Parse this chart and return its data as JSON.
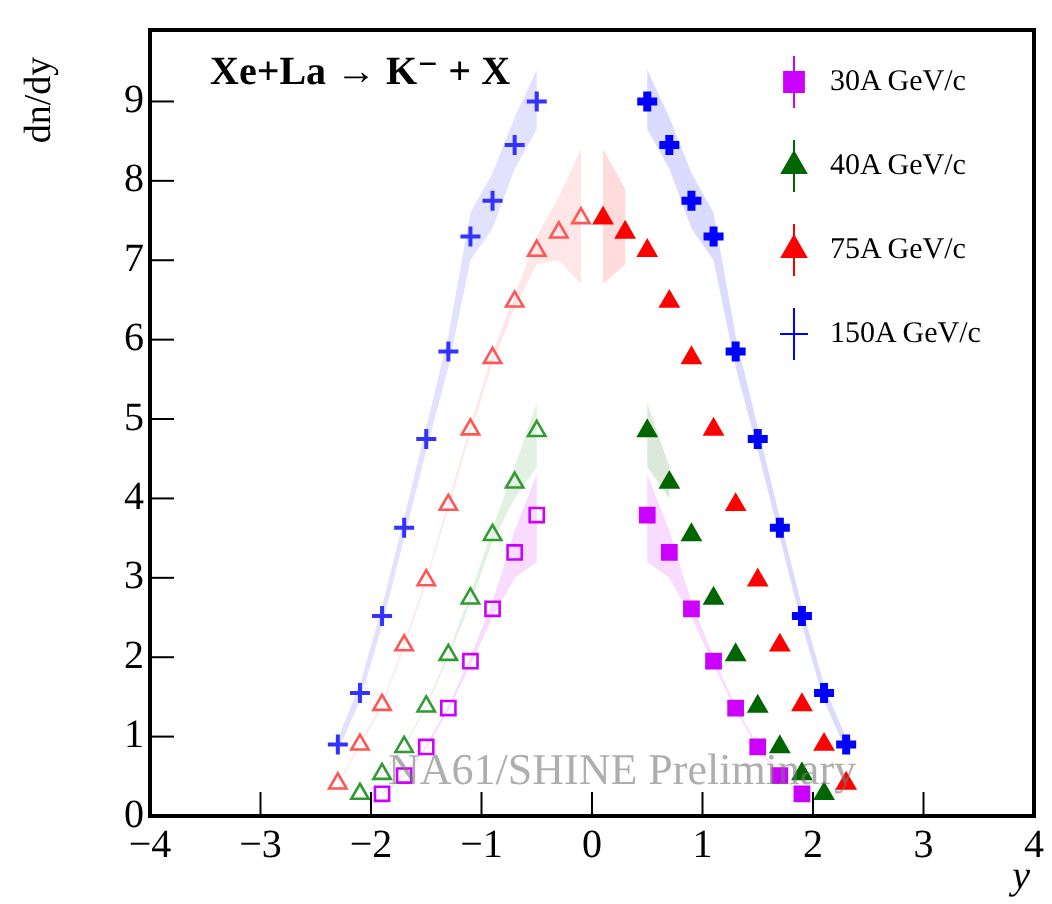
{
  "chart_data": {
    "type": "scatter",
    "title": "Xe+La → K⁻ + X",
    "xlabel": "y",
    "ylabel": "dn/dy",
    "xlim": [
      -4,
      4
    ],
    "xticks": [
      -4,
      -3,
      -2,
      -1,
      0,
      1,
      2,
      3,
      4
    ],
    "ylim": [
      0,
      9.9
    ],
    "yticks": [
      0,
      1,
      2,
      3,
      4,
      5,
      6,
      7,
      8,
      9
    ],
    "grid": false,
    "legend": "top right",
    "annotations": [
      "NA61/SHINE Preliminary"
    ],
    "series": [
      {
        "name": "30A GeV/c",
        "color": "#cc00ff",
        "marker": "square",
        "x": [
          0.5,
          0.7,
          0.9,
          1.1,
          1.3,
          1.5,
          1.7,
          1.9
        ],
        "values": [
          3.79,
          3.32,
          2.61,
          1.95,
          1.36,
          0.87,
          0.51,
          0.28
        ],
        "lower": [
          3.2,
          3.0,
          2.5,
          1.9,
          1.33,
          0.85,
          0.5,
          0.27
        ],
        "upper": [
          4.3,
          3.6,
          2.7,
          2.0,
          1.39,
          0.89,
          0.52,
          0.29
        ]
      },
      {
        "name": "40A GeV/c",
        "color": "#006600",
        "marker": "triangle",
        "x": [
          0.5,
          0.7,
          0.9,
          1.1,
          1.3,
          1.5,
          1.7,
          1.9,
          2.1
        ],
        "values": [
          4.85,
          4.2,
          3.54,
          2.74,
          2.03,
          1.38,
          0.87,
          0.53,
          0.28
        ],
        "lower": [
          4.4,
          4.0,
          null,
          null,
          null,
          null,
          null,
          null,
          null
        ],
        "upper": [
          5.2,
          4.4,
          null,
          null,
          null,
          null,
          null,
          null,
          null
        ]
      },
      {
        "name": "75A GeV/c",
        "color": "#ff0000",
        "marker": "triangle",
        "x": [
          0.1,
          0.3,
          0.5,
          0.7,
          0.9,
          1.1,
          1.3,
          1.5,
          1.7,
          1.9,
          2.1,
          2.3
        ],
        "values": [
          7.53,
          7.35,
          7.12,
          6.48,
          5.77,
          4.87,
          3.92,
          2.97,
          2.15,
          1.4,
          0.9,
          0.41
        ],
        "lower": [
          6.7,
          6.95,
          null,
          null,
          null,
          null,
          null,
          null,
          null,
          null,
          null,
          null
        ],
        "upper": [
          8.4,
          7.9,
          null,
          null,
          null,
          null,
          null,
          null,
          null,
          null,
          null,
          null
        ]
      },
      {
        "name": "150A GeV/c",
        "color": "#0000ff",
        "marker": "cross",
        "x": [
          0.5,
          0.7,
          0.9,
          1.1,
          1.3,
          1.5,
          1.7,
          1.9,
          2.1,
          2.3
        ],
        "values": [
          9.0,
          8.45,
          7.75,
          7.3,
          5.85,
          4.75,
          3.63,
          2.52,
          1.55,
          0.9
        ],
        "lower": [
          8.65,
          8.15,
          7.4,
          7.0,
          5.65,
          4.6,
          3.5,
          2.4,
          1.45,
          0.82
        ],
        "upper": [
          9.4,
          8.8,
          8.1,
          7.6,
          6.05,
          4.9,
          3.76,
          2.64,
          1.65,
          0.98
        ]
      },
      {
        "color": "#cc00ff",
        "marker": "square",
        "x": [
          -0.5,
          -0.7,
          -0.9,
          -1.1,
          -1.3,
          -1.5,
          -1.7,
          -1.9
        ],
        "values": [
          3.79,
          3.32,
          2.61,
          1.95,
          1.36,
          0.87,
          0.51,
          0.28
        ],
        "lower": [
          3.2,
          3.0,
          2.5,
          1.9,
          1.33,
          0.85,
          0.5,
          0.27
        ],
        "upper": [
          4.3,
          3.6,
          2.7,
          2.0,
          1.39,
          0.89,
          0.52,
          0.29
        ]
      },
      {
        "color": "#339933",
        "marker": "triangle",
        "x": [
          -0.5,
          -0.7,
          -0.9,
          -1.1,
          -1.3,
          -1.5,
          -1.7,
          -1.9,
          -2.1
        ],
        "values": [
          4.85,
          4.2,
          3.54,
          2.74,
          2.03,
          1.38,
          0.87,
          0.53,
          0.28
        ],
        "lower": [
          4.4,
          4.0,
          3.45,
          2.68,
          2.0,
          1.36,
          0.86,
          0.52,
          0.27
        ],
        "upper": [
          5.2,
          4.4,
          3.62,
          2.8,
          2.06,
          1.4,
          0.88,
          0.54,
          0.29
        ]
      },
      {
        "color": "#ff5555",
        "marker": "triangle",
        "x": [
          -0.1,
          -0.3,
          -0.5,
          -0.7,
          -0.9,
          -1.1,
          -1.3,
          -1.5,
          -1.7,
          -1.9,
          -2.1,
          -2.3
        ],
        "values": [
          7.53,
          7.35,
          7.12,
          6.48,
          5.77,
          4.87,
          3.92,
          2.97,
          2.15,
          1.4,
          0.9,
          0.41
        ],
        "lower": [
          6.7,
          7.0,
          6.95,
          6.4,
          5.7,
          4.82,
          3.88,
          2.94,
          2.12,
          1.38,
          0.88,
          0.4
        ],
        "upper": [
          8.4,
          7.8,
          7.3,
          6.56,
          5.84,
          4.92,
          3.96,
          3.0,
          2.18,
          1.42,
          0.92,
          0.42
        ]
      },
      {
        "color": "#3333ff",
        "marker": "cross",
        "x": [
          -0.5,
          -0.7,
          -0.9,
          -1.1,
          -1.3,
          -1.5,
          -1.7,
          -1.9,
          -2.1,
          -2.3
        ],
        "values": [
          9.0,
          8.45,
          7.75,
          7.3,
          5.85,
          4.75,
          3.63,
          2.52,
          1.55,
          0.9
        ],
        "lower": [
          8.65,
          8.15,
          7.4,
          7.0,
          5.65,
          4.6,
          3.5,
          2.4,
          1.45,
          0.82
        ],
        "upper": [
          9.4,
          8.8,
          8.1,
          7.6,
          6.05,
          4.9,
          3.76,
          2.64,
          1.65,
          0.98
        ]
      }
    ]
  }
}
